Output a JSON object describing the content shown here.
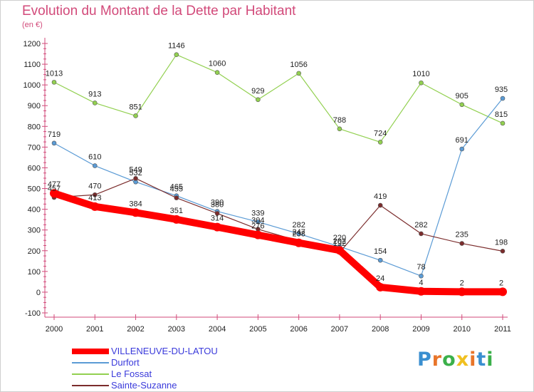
{
  "title": "Evolution du Montant de la Dette par Habitant",
  "subtitle": "(en €)",
  "logo": {
    "text": "Proxiti",
    "colors": [
      "#3a8fd0",
      "#e8752a",
      "#3bb04a",
      "#f0c020",
      "#e8752a",
      "#3a8fd0",
      "#3bb04a"
    ]
  },
  "chart_data": {
    "type": "line",
    "title": "Evolution du Montant de la Dette par Habitant",
    "subtitle": "(en €)",
    "xlabel": "",
    "ylabel": "",
    "x": [
      "2000",
      "2001",
      "2002",
      "2003",
      "2004",
      "2005",
      "2006",
      "2007",
      "2008",
      "2009",
      "2010",
      "2011"
    ],
    "ylim": [
      -100,
      1200
    ],
    "yticks": [
      -100,
      0,
      100,
      200,
      300,
      400,
      500,
      600,
      700,
      800,
      900,
      1000,
      1100,
      1200
    ],
    "grid": false,
    "legend": "bottom-left",
    "series": [
      {
        "name": "VILLENEUVE-DU-LATOU",
        "color": "#ff0000",
        "values": [
          477,
          413,
          384,
          351,
          314,
          276,
          238,
          202,
          24,
          4,
          2,
          2
        ]
      },
      {
        "name": "Durfort",
        "color": "#5b9bd5",
        "values": [
          719,
          610,
          532,
          465,
          390,
          339,
          282,
          220,
          154,
          78,
          691,
          935
        ]
      },
      {
        "name": "Le Fossat",
        "color": "#92d050",
        "values": [
          1013,
          913,
          851,
          1146,
          1060,
          929,
          1056,
          788,
          724,
          1010,
          905,
          815
        ]
      },
      {
        "name": "Sainte-Suzanne",
        "color": "#7b2c2c",
        "values": [
          457,
          470,
          549,
          455,
          380,
          304,
          247,
          192,
          419,
          282,
          235,
          198
        ]
      }
    ]
  }
}
